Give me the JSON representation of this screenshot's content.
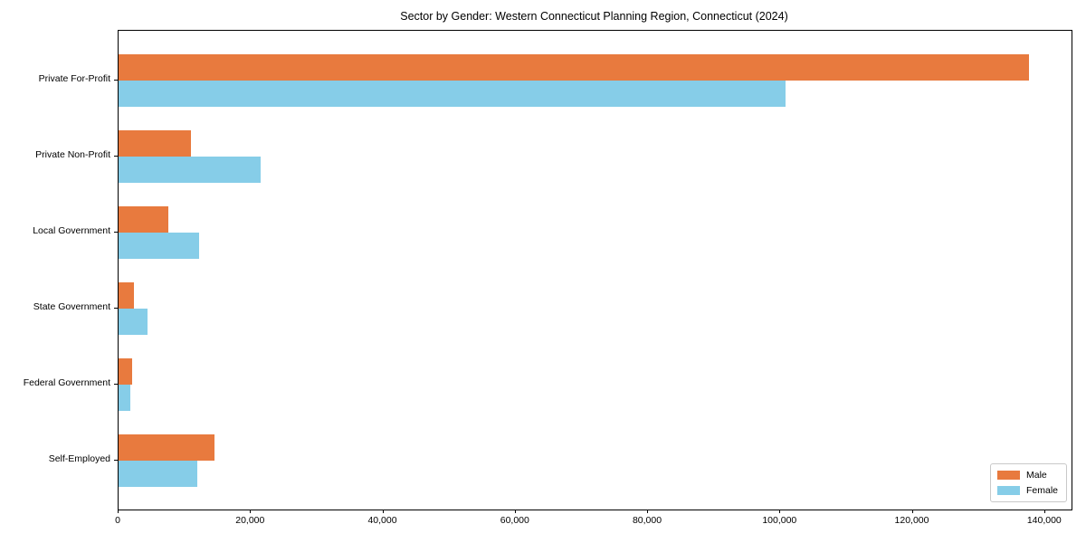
{
  "figure_title": "Sector by Gender: Western Connecticut Planning Region, Connecticut (2024)",
  "chart_data": {
    "type": "bar",
    "orientation": "horizontal",
    "title": "Sector by Gender: Western Connecticut Planning Region, Connecticut (2024)",
    "categories": [
      "Private For-Profit",
      "Private Non-Profit",
      "Local Government",
      "State Government",
      "Federal Government",
      "Self-Employed"
    ],
    "series": [
      {
        "name": "Male",
        "color": "#e87a3e",
        "values": [
          137600,
          10900,
          7500,
          2300,
          2100,
          14500
        ]
      },
      {
        "name": "Female",
        "color": "#86cde8",
        "values": [
          100800,
          21400,
          12200,
          4400,
          1800,
          11900
        ]
      }
    ],
    "xlabel": "",
    "ylabel": "",
    "xlim": [
      0,
      144000
    ],
    "x_ticks": [
      0,
      20000,
      40000,
      60000,
      80000,
      100000,
      120000,
      140000
    ],
    "x_tick_labels": [
      "0",
      "20,000",
      "40,000",
      "60,000",
      "80,000",
      "100,000",
      "120,000",
      "140,000"
    ],
    "grid": false,
    "legend": {
      "position": "lower right",
      "entries": [
        {
          "label": "Male",
          "color": "#e87a3e"
        },
        {
          "label": "Female",
          "color": "#86cde8"
        }
      ]
    }
  }
}
